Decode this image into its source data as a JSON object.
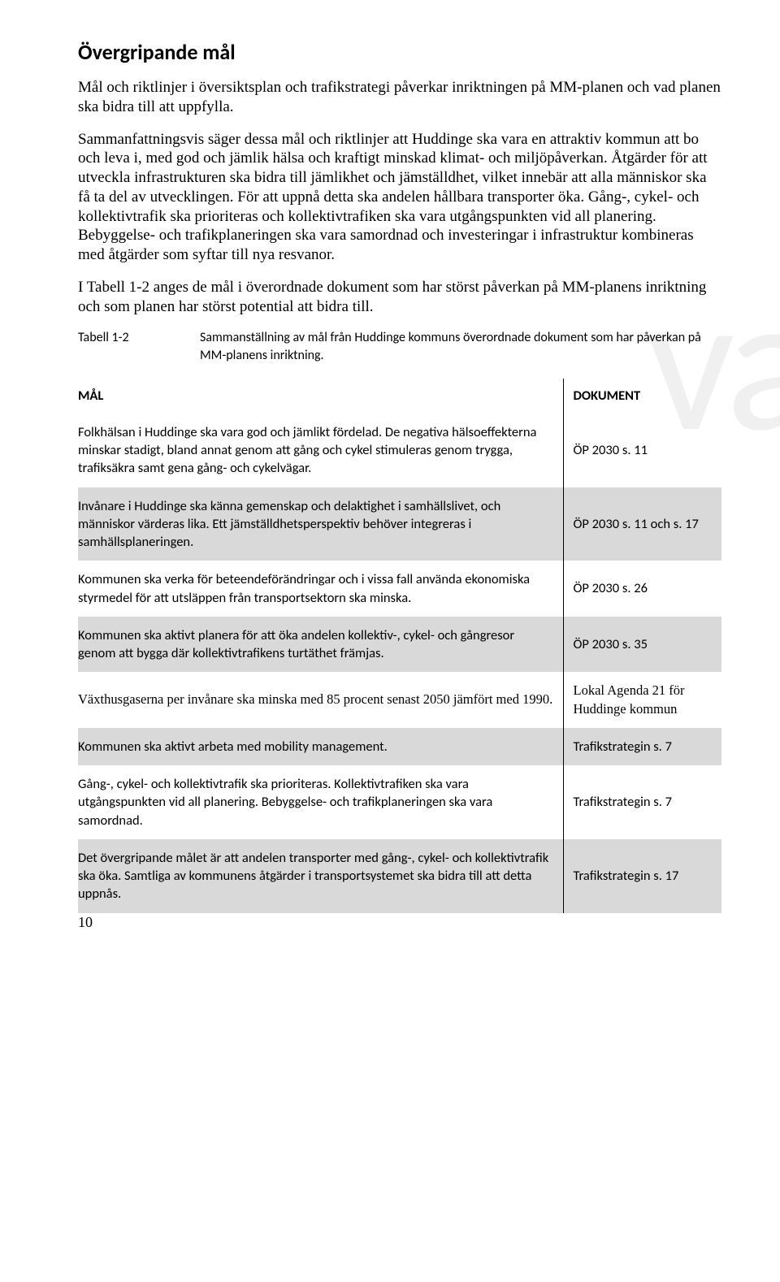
{
  "watermark": "va",
  "heading": "Övergripande mål",
  "paragraphs": [
    "Mål och riktlinjer i översiktsplan och trafikstrategi påverkar inriktningen på MM-planen och vad planen ska bidra till att uppfylla.",
    "Sammanfattningsvis säger dessa mål och riktlinjer att Huddinge ska vara en attraktiv kommun att bo och leva i, med god och jämlik hälsa och kraftigt minskad klimat- och miljöpåverkan. Åtgärder för att utveckla infrastrukturen ska bidra till jämlikhet och jämställdhet, vilket innebär att alla människor ska få ta del av utvecklingen. För att uppnå detta ska andelen hållbara transporter öka. Gång-, cykel- och kollektivtrafik ska prioriteras och kollektivtrafiken ska vara utgångspunkten vid all planering. Bebyggelse- och trafikplaneringen ska vara samordnad och investeringar i infrastruktur kombineras med åtgärder som syftar till nya resvanor.",
    "I Tabell 1-2 anges de mål i överordnade dokument som har störst påverkan på MM-planens inriktning och som planen har störst potential att bidra till."
  ],
  "table_label": "Tabell 1-2",
  "table_caption": "Sammanställning av mål från Huddinge kommuns överordnade dokument som har påverkan på MM-planens inriktning.",
  "columns": {
    "c1": "MÅL",
    "c2": "DOKUMENT"
  },
  "rows": [
    {
      "goal": "Folkhälsan i Huddinge ska vara god och jämlikt fördelad. De negativa hälsoeffekterna minskar stadigt, bland annat genom att gång och cykel stimuleras genom trygga, trafiksäkra samt gena gång- och cykelvägar.",
      "doc": "ÖP 2030 s. 11",
      "shaded": false
    },
    {
      "goal": "Invånare i Huddinge ska känna gemenskap och delaktighet i samhällslivet, och människor värderas lika. Ett jämställdhetsperspektiv behöver integreras i samhällsplaneringen.",
      "doc": "ÖP 2030 s. 11 och s. 17",
      "shaded": true
    },
    {
      "goal": "Kommunen ska verka för beteendeförändringar och i vissa fall använda ekonomiska styrmedel för att utsläppen från transportsektorn ska minska.",
      "doc": "ÖP 2030 s. 26",
      "shaded": false
    },
    {
      "goal": "Kommunen ska aktivt planera för att öka andelen kollektiv-, cykel- och gångresor genom att bygga där kollektivtrafikens turtäthet främjas.",
      "doc": "ÖP 2030 s. 35",
      "shaded": true
    },
    {
      "goal": "Växthusgaserna per invånare ska minska med 85 procent senast 2050 jämfört med 1990.",
      "doc": "Lokal Agenda 21 för Huddinge kommun",
      "shaded": false,
      "serif": true
    },
    {
      "goal": "Kommunen ska aktivt arbeta med mobility management.",
      "doc": "Trafikstrategin s. 7",
      "shaded": true
    },
    {
      "goal": "Gång-, cykel- och kollektivtrafik ska prioriteras. Kollektivtrafiken ska vara utgångspunkten vid all planering. Bebyggelse- och trafikplaneringen ska vara samordnad.",
      "doc": "Trafikstrategin s. 7",
      "shaded": false
    },
    {
      "goal": "Det övergripande målet är att andelen transporter med gång-, cykel- och kollektivtrafik ska öka. Samtliga av kommunens åtgärder i transportsystemet ska bidra till att detta uppnås.",
      "doc": "Trafikstrategin s. 17",
      "shaded": true
    }
  ],
  "page_number": "10"
}
